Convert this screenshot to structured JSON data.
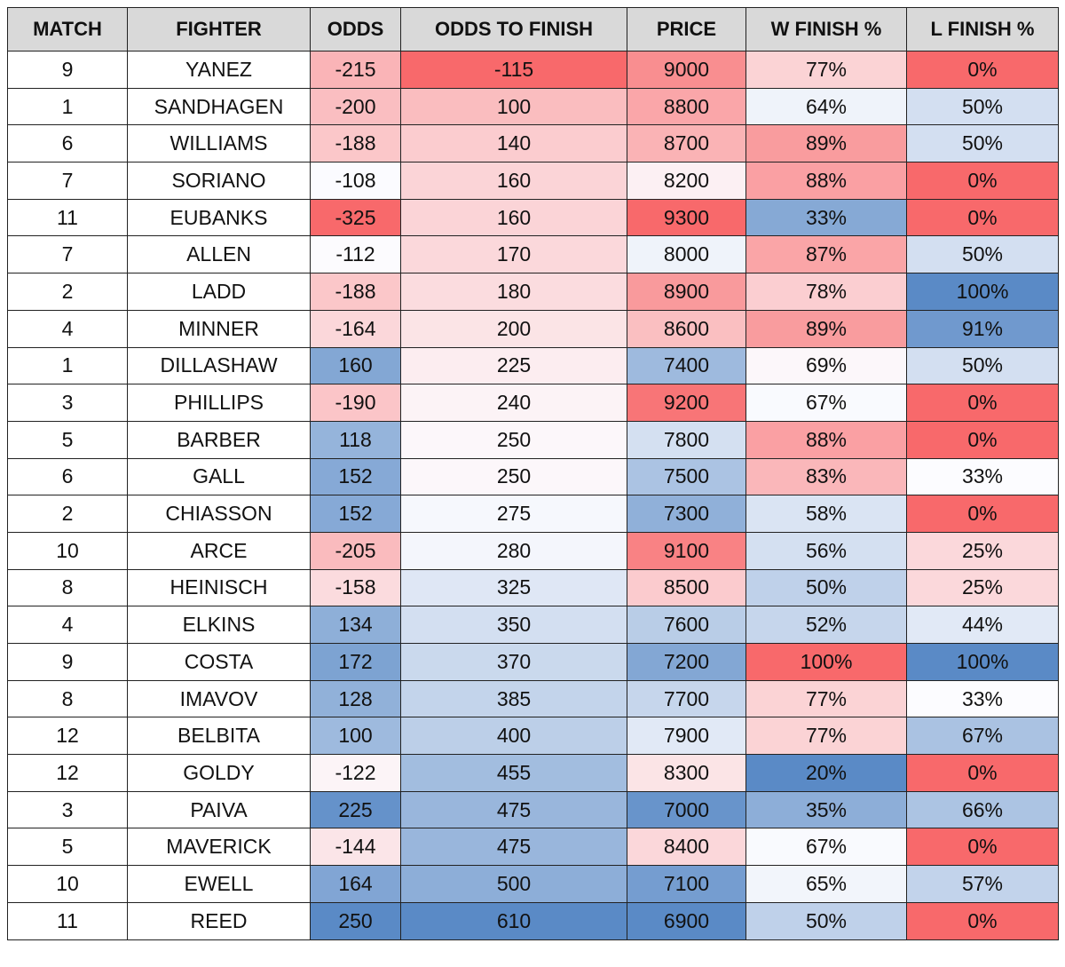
{
  "table": {
    "header": [
      "MATCH",
      "FIGHTER",
      "ODDS",
      "ODDS TO FINISH",
      "PRICE",
      "W FINISH %",
      "L FINISH %"
    ],
    "rows": [
      [
        "9",
        "YANEZ",
        "-215",
        "-115",
        "9000",
        "77%",
        "0%"
      ],
      [
        "1",
        "SANDHAGEN",
        "-200",
        "100",
        "8800",
        "64%",
        "50%"
      ],
      [
        "6",
        "WILLIAMS",
        "-188",
        "140",
        "8700",
        "89%",
        "50%"
      ],
      [
        "7",
        "SORIANO",
        "-108",
        "160",
        "8200",
        "88%",
        "0%"
      ],
      [
        "11",
        "EUBANKS",
        "-325",
        "160",
        "9300",
        "33%",
        "0%"
      ],
      [
        "7",
        "ALLEN",
        "-112",
        "170",
        "8000",
        "87%",
        "50%"
      ],
      [
        "2",
        "LADD",
        "-188",
        "180",
        "8900",
        "78%",
        "100%"
      ],
      [
        "4",
        "MINNER",
        "-164",
        "200",
        "8600",
        "89%",
        "91%"
      ],
      [
        "1",
        "DILLASHAW",
        "160",
        "225",
        "7400",
        "69%",
        "50%"
      ],
      [
        "3",
        "PHILLIPS",
        "-190",
        "240",
        "9200",
        "67%",
        "0%"
      ],
      [
        "5",
        "BARBER",
        "118",
        "250",
        "7800",
        "88%",
        "0%"
      ],
      [
        "6",
        "GALL",
        "152",
        "250",
        "7500",
        "83%",
        "33%"
      ],
      [
        "2",
        "CHIASSON",
        "152",
        "275",
        "7300",
        "58%",
        "0%"
      ],
      [
        "10",
        "ARCE",
        "-205",
        "280",
        "9100",
        "56%",
        "25%"
      ],
      [
        "8",
        "HEINISCH",
        "-158",
        "325",
        "8500",
        "50%",
        "25%"
      ],
      [
        "4",
        "ELKINS",
        "134",
        "350",
        "7600",
        "52%",
        "44%"
      ],
      [
        "9",
        "COSTA",
        "172",
        "370",
        "7200",
        "100%",
        "100%"
      ],
      [
        "8",
        "IMAVOV",
        "128",
        "385",
        "7700",
        "77%",
        "33%"
      ],
      [
        "12",
        "BELBITA",
        "100",
        "400",
        "7900",
        "77%",
        "67%"
      ],
      [
        "12",
        "GOLDY",
        "-122",
        "455",
        "8300",
        "20%",
        "0%"
      ],
      [
        "3",
        "PAIVA",
        "225",
        "475",
        "7000",
        "35%",
        "66%"
      ],
      [
        "5",
        "MAVERICK",
        "-144",
        "475",
        "8400",
        "67%",
        "0%"
      ],
      [
        "10",
        "EWELL",
        "164",
        "500",
        "7100",
        "65%",
        "57%"
      ],
      [
        "11",
        "REED",
        "250",
        "610",
        "6900",
        "50%",
        "0%"
      ]
    ],
    "heatmap": [
      {
        "column": 2,
        "min_color": "#f8696b",
        "mid_color": "#fcfcff",
        "max_color": "#5a8ac6"
      },
      {
        "column": 3,
        "min_color": "#f8696b",
        "mid_color": "#fcfcff",
        "max_color": "#5a8ac6"
      },
      {
        "column": 4,
        "min_color": "#5a8ac6",
        "mid_color": "#fcfcff",
        "max_color": "#f8696b"
      },
      {
        "column": 5,
        "min_color": "#5a8ac6",
        "mid_color": "#fcfcff",
        "max_color": "#f8696b"
      },
      {
        "column": 6,
        "min_color": "#f8696b",
        "mid_color": "#fcfcff",
        "max_color": "#5a8ac6"
      }
    ]
  }
}
